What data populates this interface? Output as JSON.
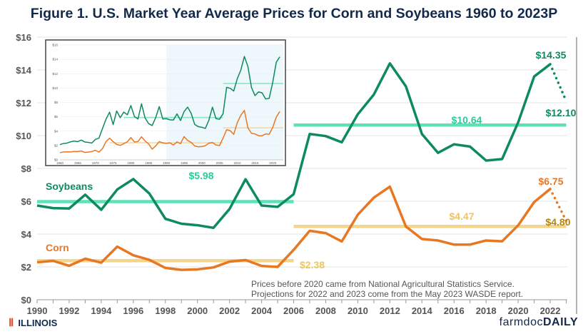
{
  "chart_data": [
    {
      "type": "line",
      "title": "Figure 1. U.S. Market Year Average Prices for Corn and Soybeans 1960 to 2023P",
      "x_ticks": [
        "1990",
        "1992",
        "1994",
        "1996",
        "1998",
        "2000",
        "2002",
        "2004",
        "2006",
        "2008",
        "2010",
        "2012",
        "2014",
        "2016",
        "2018",
        "2020",
        "2022"
      ],
      "y_ticks": [
        "$0",
        "$2",
        "$4",
        "$6",
        "$8",
        "$10",
        "$12",
        "$14",
        "$16"
      ],
      "xlim": [
        1990,
        2023
      ],
      "ylim": [
        0,
        16
      ],
      "grid": "horizontal",
      "series": [
        {
          "name": "Soybeans",
          "color": "#0E8A5F",
          "x": [
            1990,
            1991,
            1992,
            1993,
            1994,
            1995,
            1996,
            1997,
            1998,
            1999,
            2000,
            2001,
            2002,
            2003,
            2004,
            2005,
            2006,
            2007,
            2008,
            2009,
            2010,
            2011,
            2012,
            2013,
            2014,
            2015,
            2016,
            2017,
            2018,
            2019,
            2020,
            2021,
            2022
          ],
          "values": [
            5.74,
            5.58,
            5.56,
            6.4,
            5.48,
            6.72,
            7.35,
            6.47,
            4.93,
            4.63,
            4.54,
            4.38,
            5.53,
            7.34,
            5.74,
            5.66,
            6.43,
            10.1,
            9.97,
            9.59,
            11.3,
            12.5,
            14.4,
            13.0,
            10.1,
            8.95,
            9.47,
            9.33,
            8.48,
            8.57,
            10.8,
            13.6,
            14.35
          ],
          "projection": {
            "x": [
              2022,
              2023
            ],
            "values": [
              14.35,
              12.1
            ]
          },
          "averages": [
            {
              "from": 1990,
              "to": 2006,
              "value": 5.98,
              "label": "$5.98"
            },
            {
              "from": 2006,
              "to": 2023,
              "value": 10.64,
              "label": "$10.64"
            }
          ],
          "average_color": "#5EE0B8",
          "labels": {
            "peak": "$14.35",
            "projection": "$12.10"
          }
        },
        {
          "name": "Corn",
          "color": "#E87722",
          "x": [
            1990,
            1991,
            1992,
            1993,
            1994,
            1995,
            1996,
            1997,
            1998,
            1999,
            2000,
            2001,
            2002,
            2003,
            2004,
            2005,
            2006,
            2007,
            2008,
            2009,
            2010,
            2011,
            2012,
            2013,
            2014,
            2015,
            2016,
            2017,
            2018,
            2019,
            2020,
            2021,
            2022
          ],
          "values": [
            2.28,
            2.37,
            2.07,
            2.5,
            2.26,
            3.24,
            2.71,
            2.43,
            1.94,
            1.82,
            1.85,
            1.97,
            2.32,
            2.42,
            2.06,
            2.0,
            3.04,
            4.2,
            4.06,
            3.55,
            5.18,
            6.22,
            6.89,
            4.46,
            3.7,
            3.61,
            3.36,
            3.36,
            3.61,
            3.56,
            4.53,
            5.95,
            6.75
          ],
          "projection": {
            "x": [
              2022,
              2023
            ],
            "values": [
              6.75,
              4.8
            ]
          },
          "averages": [
            {
              "from": 1990,
              "to": 2006,
              "value": 2.38,
              "label": "$2.38"
            },
            {
              "from": 2006,
              "to": 2023,
              "value": 4.47,
              "label": "$4.47"
            }
          ],
          "average_color": "#F5D58A",
          "labels": {
            "peak": "$6.75",
            "projection": "$4.80"
          },
          "projection_label_color": "#B8860B"
        }
      ],
      "annotation": [
        "Prices before 2020 came from National Agricultural Statistics Service.",
        "Projections for 2022 and 2023 come from the May 2023 WASDE report."
      ]
    },
    {
      "type": "line",
      "inset": true,
      "x_ticks": [
        "1960",
        "1965",
        "1970",
        "1975",
        "1980",
        "1985",
        "1990",
        "1995",
        "2000",
        "2005",
        "2010",
        "2015",
        "2020"
      ],
      "y_ticks": [
        "$0",
        "$2",
        "$4",
        "$6",
        "$8",
        "$10",
        "$12",
        "$14",
        "$16"
      ],
      "xlim": [
        1960,
        2023
      ],
      "ylim": [
        0,
        16
      ],
      "highlight_from": 1990,
      "highlight_color": "#EEF7FC",
      "series": [
        {
          "color": "#0E8A5F",
          "x_start": 1960,
          "values": [
            2.13,
            2.28,
            2.34,
            2.51,
            2.62,
            2.54,
            2.75,
            2.49,
            2.43,
            2.35,
            2.85,
            3.03,
            4.37,
            5.68,
            6.64,
            4.92,
            6.81,
            5.88,
            6.66,
            6.28,
            7.57,
            6.04,
            5.69,
            7.81,
            5.84,
            5.05,
            4.78,
            5.88,
            7.42,
            5.69,
            5.74,
            5.58,
            5.56,
            6.4,
            5.48,
            6.72,
            7.35,
            6.47,
            4.93,
            4.63,
            4.54,
            4.38,
            5.53,
            7.34,
            5.74,
            5.66,
            6.43,
            10.1,
            9.97,
            9.59,
            11.3,
            12.5,
            14.4,
            13.0,
            10.1,
            8.95,
            9.47,
            9.33,
            8.48,
            8.57,
            10.8,
            13.6,
            14.35
          ],
          "averages": [
            {
              "from": 1978,
              "to": 2006,
              "value": 5.9
            },
            {
              "from": 2006,
              "to": 2023,
              "value": 10.64
            }
          ]
        },
        {
          "color": "#E87722",
          "x_start": 1960,
          "values": [
            1.0,
            1.1,
            1.12,
            1.11,
            1.17,
            1.16,
            1.24,
            1.03,
            1.08,
            1.16,
            1.33,
            1.08,
            1.57,
            2.55,
            3.02,
            2.54,
            2.15,
            2.02,
            2.25,
            2.52,
            3.11,
            2.5,
            2.55,
            3.21,
            2.63,
            2.23,
            1.5,
            1.94,
            2.54,
            2.36,
            2.28,
            2.37,
            2.07,
            2.5,
            2.26,
            3.24,
            2.71,
            2.43,
            1.94,
            1.82,
            1.85,
            1.97,
            2.32,
            2.42,
            2.06,
            2.0,
            3.04,
            4.2,
            4.06,
            3.55,
            5.18,
            6.22,
            6.89,
            4.46,
            3.7,
            3.61,
            3.36,
            3.36,
            3.61,
            3.56,
            4.53,
            5.95,
            6.75
          ],
          "averages": [
            {
              "from": 1974,
              "to": 2006,
              "value": 2.38
            },
            {
              "from": 2006,
              "to": 2023,
              "value": 4.47
            }
          ]
        }
      ]
    }
  ],
  "footer": {
    "left_logo": "ILLINOIS",
    "right_logo_a": "farmdoc",
    "right_logo_b": "DAILY"
  }
}
